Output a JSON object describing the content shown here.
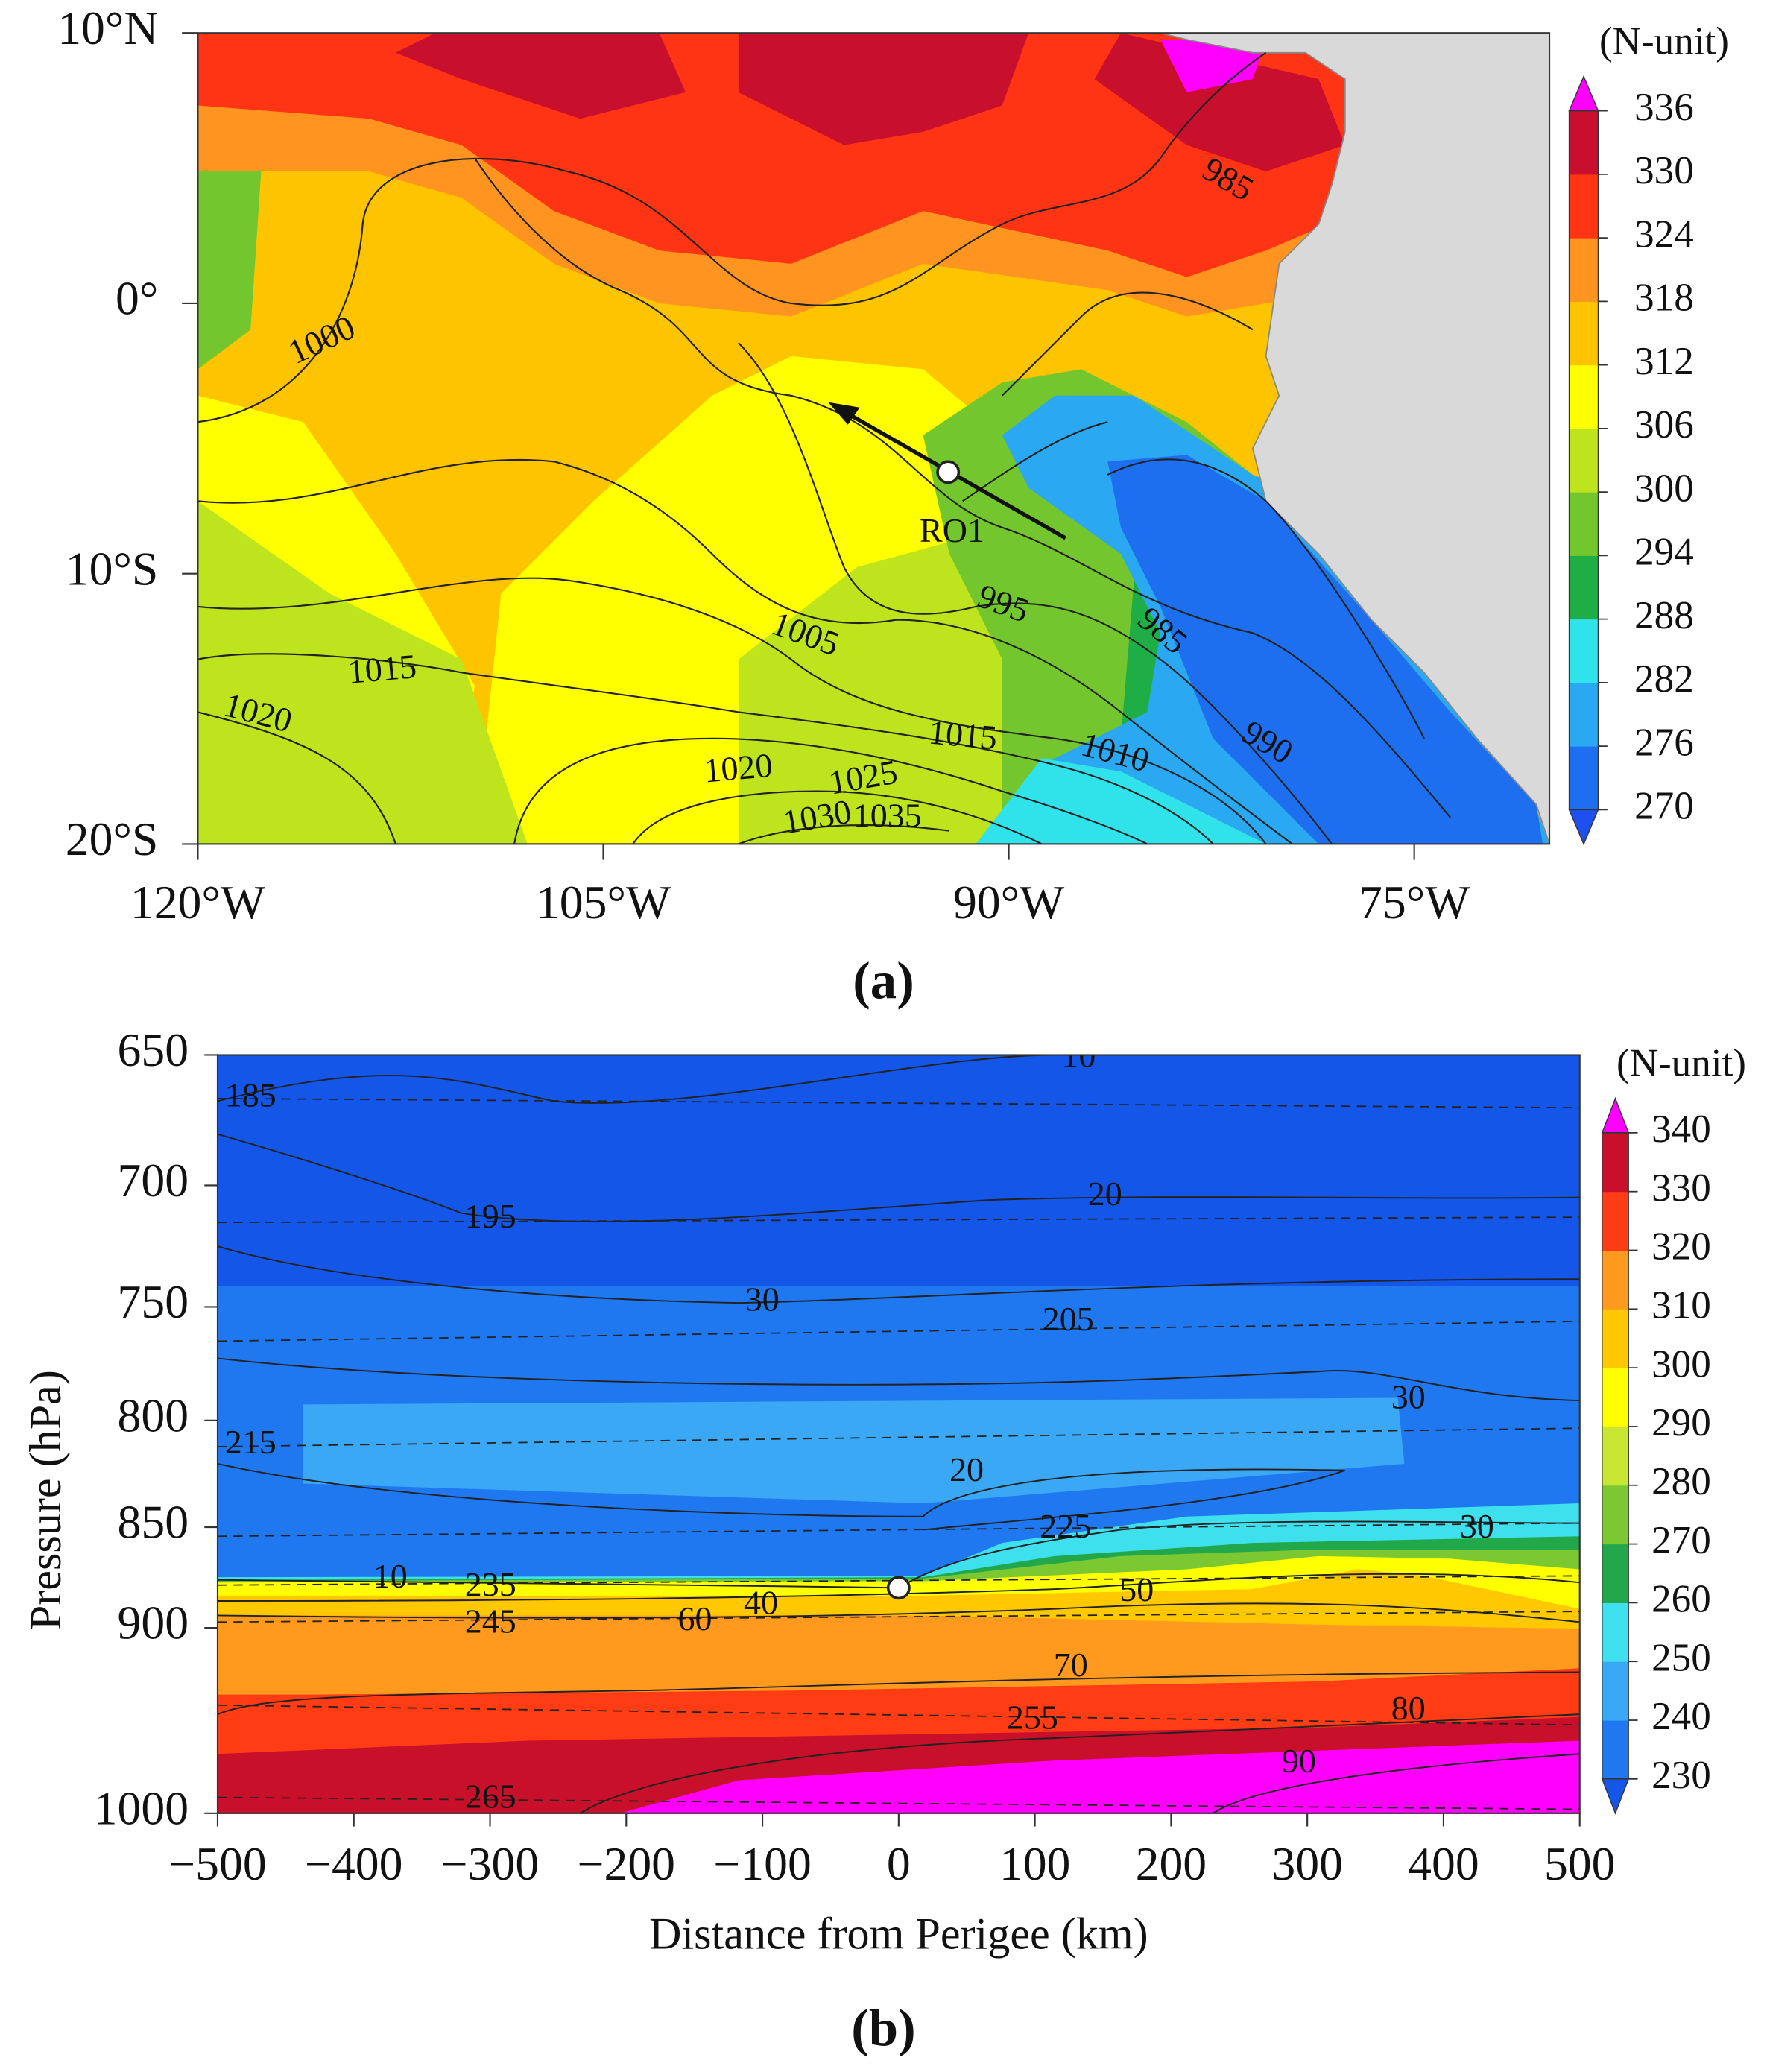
{
  "chart_data": [
    {
      "type": "contour",
      "panel_label": "(a)",
      "xlim": [
        -120,
        -70
      ],
      "ylim": [
        -20,
        10
      ],
      "xticks": [
        {
          "value": -120,
          "label": "120°W"
        },
        {
          "value": -105,
          "label": "105°W"
        },
        {
          "value": -90,
          "label": "90°W"
        },
        {
          "value": -75,
          "label": "75°W"
        }
      ],
      "yticks": [
        {
          "value": 10,
          "label": "10°N"
        },
        {
          "value": 0,
          "label": "0°"
        },
        {
          "value": -10,
          "label": "10°S"
        },
        {
          "value": -20,
          "label": "20°S"
        }
      ],
      "colorbar": {
        "label": "(N-unit)",
        "ticks": [
          270,
          276,
          282,
          288,
          294,
          300,
          306,
          312,
          318,
          324,
          330,
          336
        ],
        "colors": [
          "#1e6ef0",
          "#2aa8f2",
          "#30e2ea",
          "#1fae45",
          "#74c62e",
          "#bde41c",
          "#ffff00",
          "#ffc400",
          "#ff9520",
          "#ff3414",
          "#c8102e"
        ],
        "under_color": "#1e50f0",
        "over_color": "#ff00ff"
      },
      "land_color": "#d9d9d9",
      "contour_labels": [
        985,
        1000,
        995,
        985,
        1005,
        1015,
        1020,
        1015,
        1010,
        990,
        1020,
        1025,
        1030,
        1035
      ],
      "marker_label": "RO1"
    },
    {
      "type": "contour",
      "panel_label": "(b)",
      "xlabel": "Distance from Perigee (km)",
      "ylabel": "Pressure (hPa)",
      "xlim": [
        -500,
        500
      ],
      "ylim": [
        1000,
        650
      ],
      "y_scale": "log",
      "xticks": [
        {
          "value": -500,
          "label": "−500"
        },
        {
          "value": -400,
          "label": "−400"
        },
        {
          "value": -300,
          "label": "−300"
        },
        {
          "value": -200,
          "label": "−200"
        },
        {
          "value": -100,
          "label": "−100"
        },
        0,
        100,
        200,
        300,
        400,
        500
      ],
      "yticks": [
        650,
        700,
        750,
        800,
        850,
        900,
        1000
      ],
      "colorbar": {
        "label": "(N-unit)",
        "ticks": [
          230,
          240,
          250,
          260,
          270,
          280,
          290,
          300,
          310,
          320,
          330,
          340
        ],
        "colors": [
          "#1f78f0",
          "#3aa8f5",
          "#3fe0ee",
          "#22a84a",
          "#7cc832",
          "#c8e632",
          "#ffff00",
          "#ffc800",
          "#ff9a1e",
          "#ff3c14",
          "#c8102a"
        ],
        "under_color": "#1456e8",
        "over_color": "#ff00ff"
      },
      "contour_labels": [
        10,
        185,
        195,
        20,
        30,
        205,
        215,
        30,
        20,
        225,
        30,
        10,
        235,
        245,
        40,
        60,
        50,
        70,
        255,
        80,
        90,
        265
      ]
    }
  ]
}
